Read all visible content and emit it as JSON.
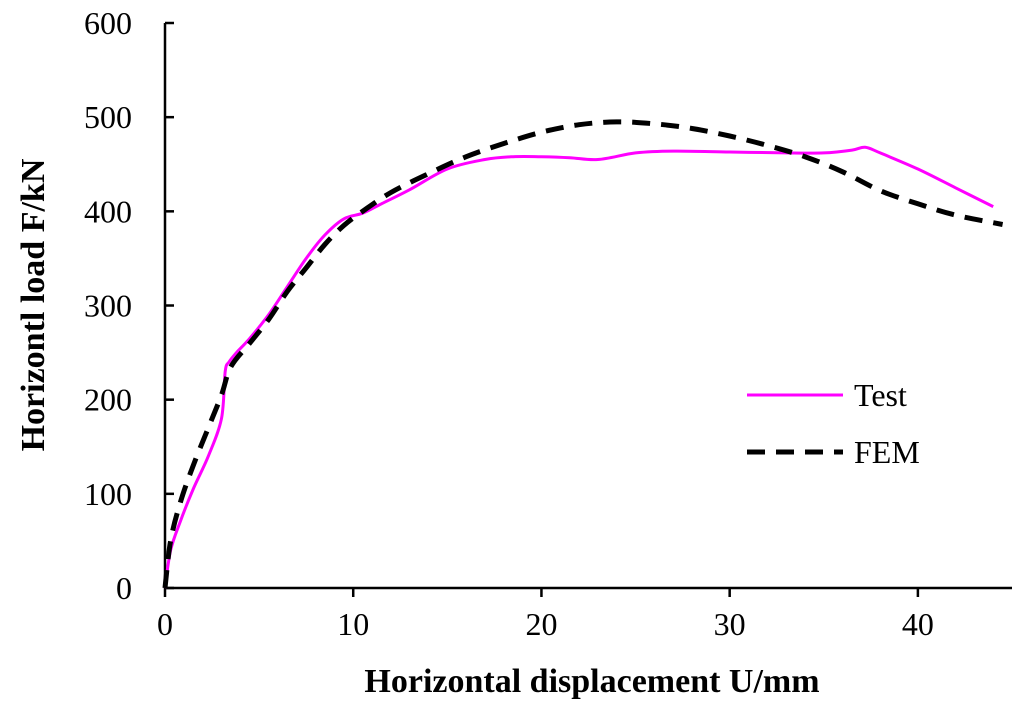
{
  "chart_data": {
    "type": "line",
    "title": "",
    "xlabel": "Horizontal displacement U/mm",
    "ylabel": "Horizontl load F/kN",
    "xlim": [
      0,
      45
    ],
    "ylim": [
      0,
      600
    ],
    "xticks": [
      0,
      10,
      20,
      30,
      40
    ],
    "yticks": [
      0,
      100,
      200,
      300,
      400,
      500,
      600
    ],
    "grid": false,
    "legend_position": "right-middle",
    "series": [
      {
        "name": "Test",
        "color": "#ff00ff",
        "style": "solid",
        "x": [
          0,
          0.3,
          0.8,
          1.5,
          2.3,
          3.0,
          3.2,
          3.4,
          3.8,
          4.5,
          5.5,
          6.5,
          7.5,
          8.5,
          9.5,
          10.5,
          11.5,
          13,
          15,
          17,
          18.5,
          20,
          21.5,
          23,
          25,
          27,
          30,
          33,
          35,
          36.5,
          37.2,
          38,
          40,
          42,
          44
        ],
        "y": [
          0,
          40,
          70,
          105,
          140,
          180,
          230,
          240,
          250,
          265,
          290,
          320,
          350,
          375,
          392,
          398,
          408,
          423,
          445,
          455,
          458,
          458,
          457,
          455,
          462,
          464,
          463,
          462,
          462,
          465,
          468,
          462,
          445,
          425,
          405
        ]
      },
      {
        "name": "FEM",
        "color": "#000000",
        "style": "dashed",
        "x": [
          0,
          0.3,
          0.8,
          1.5,
          2.3,
          3.0,
          3.5,
          4.5,
          5.5,
          6.5,
          7.5,
          8.5,
          9.5,
          10.5,
          12,
          14,
          16,
          18,
          20,
          22,
          24,
          26,
          28,
          30,
          32,
          34,
          36,
          38,
          40,
          42,
          44.5
        ],
        "y": [
          0,
          50,
          90,
          130,
          170,
          205,
          235,
          260,
          285,
          315,
          340,
          365,
          385,
          400,
          420,
          440,
          458,
          472,
          484,
          492,
          495,
          493,
          488,
          480,
          470,
          458,
          442,
          422,
          408,
          396,
          386
        ]
      }
    ]
  }
}
